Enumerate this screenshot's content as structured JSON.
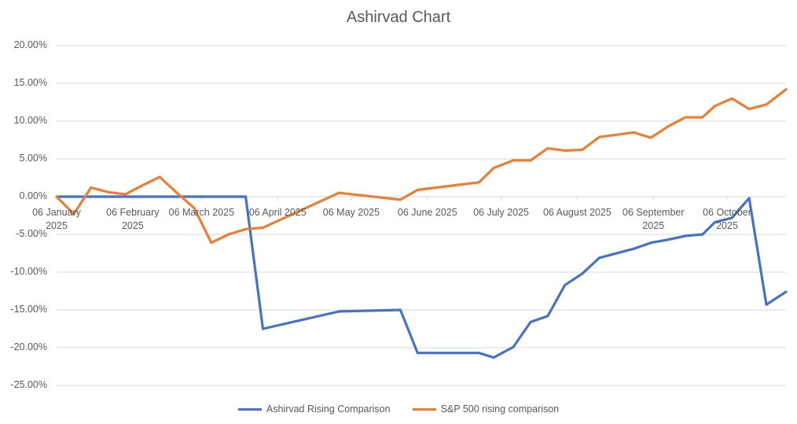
{
  "chart_data": {
    "type": "line",
    "title": "Ashirvad Chart",
    "xlabel": "",
    "ylabel": "",
    "ylim": [
      -25,
      20
    ],
    "yticks": [
      20,
      15,
      10,
      5,
      0,
      -5,
      -10,
      -15,
      -20,
      -25
    ],
    "ytick_labels": [
      "20.00%",
      "15.00%",
      "10.00%",
      "5.00%",
      "0.00%",
      "-5.00%",
      "-10.00%",
      "-15.00%",
      "-20.00%",
      "-25.00%"
    ],
    "xlim": [
      "2025-01-06",
      "2025-10-30"
    ],
    "xticks": [
      {
        "date": "2025-01-06",
        "label": "06 January 2025"
      },
      {
        "date": "2025-02-06",
        "label": "06 February 2025"
      },
      {
        "date": "2025-03-06",
        "label": "06 March 2025"
      },
      {
        "date": "2025-04-06",
        "label": "06 April 2025"
      },
      {
        "date": "2025-05-06",
        "label": "06 May 2025"
      },
      {
        "date": "2025-06-06",
        "label": "06 June 2025"
      },
      {
        "date": "2025-07-06",
        "label": "06 July 2025"
      },
      {
        "date": "2025-08-06",
        "label": "06 August 2025"
      },
      {
        "date": "2025-09-06",
        "label": "06 September 2025"
      },
      {
        "date": "2025-10-06",
        "label": "06 October 2025"
      }
    ],
    "grid": true,
    "legend_position": "bottom",
    "x": [
      "2025-01-06",
      "2025-01-13",
      "2025-01-20",
      "2025-01-27",
      "2025-02-03",
      "2025-02-10",
      "2025-02-17",
      "2025-02-24",
      "2025-03-03",
      "2025-03-10",
      "2025-03-17",
      "2025-03-24",
      "2025-03-31",
      "2025-05-01",
      "2025-05-26",
      "2025-06-02",
      "2025-06-27",
      "2025-07-03",
      "2025-07-11",
      "2025-07-18",
      "2025-07-25",
      "2025-08-01",
      "2025-08-08",
      "2025-08-15",
      "2025-08-29",
      "2025-09-05",
      "2025-09-12",
      "2025-09-19",
      "2025-09-26",
      "2025-10-01",
      "2025-10-08",
      "2025-10-15",
      "2025-10-22",
      "2025-10-30"
    ],
    "series": [
      {
        "name": "Ashirvad Rising Comparison",
        "color": "#4472C4",
        "values": [
          0,
          0,
          0,
          0,
          0,
          0,
          0,
          0,
          0,
          0,
          0,
          0,
          -17.5,
          -15.2,
          -15.0,
          -20.7,
          -20.7,
          -21.3,
          -19.9,
          -16.6,
          -15.8,
          -11.7,
          -10.2,
          -8.1,
          -6.9,
          -6.1,
          -5.7,
          -5.2,
          -5.0,
          -3.4,
          -2.8,
          -0.2,
          -14.3,
          -12.6
        ]
      },
      {
        "name": "S&P 500 rising comparison",
        "color": "#ED7D31",
        "values": [
          0,
          -2.3,
          1.2,
          0.6,
          0.3,
          1.5,
          2.6,
          0.5,
          -1.5,
          -6.1,
          -5.0,
          -4.3,
          -4.1,
          0.5,
          -0.4,
          0.9,
          1.9,
          3.8,
          4.8,
          4.8,
          6.4,
          6.1,
          6.2,
          7.9,
          8.5,
          7.8,
          9.3,
          10.5,
          10.5,
          12.0,
          13.0,
          11.6,
          12.2,
          14.2
        ]
      }
    ]
  }
}
